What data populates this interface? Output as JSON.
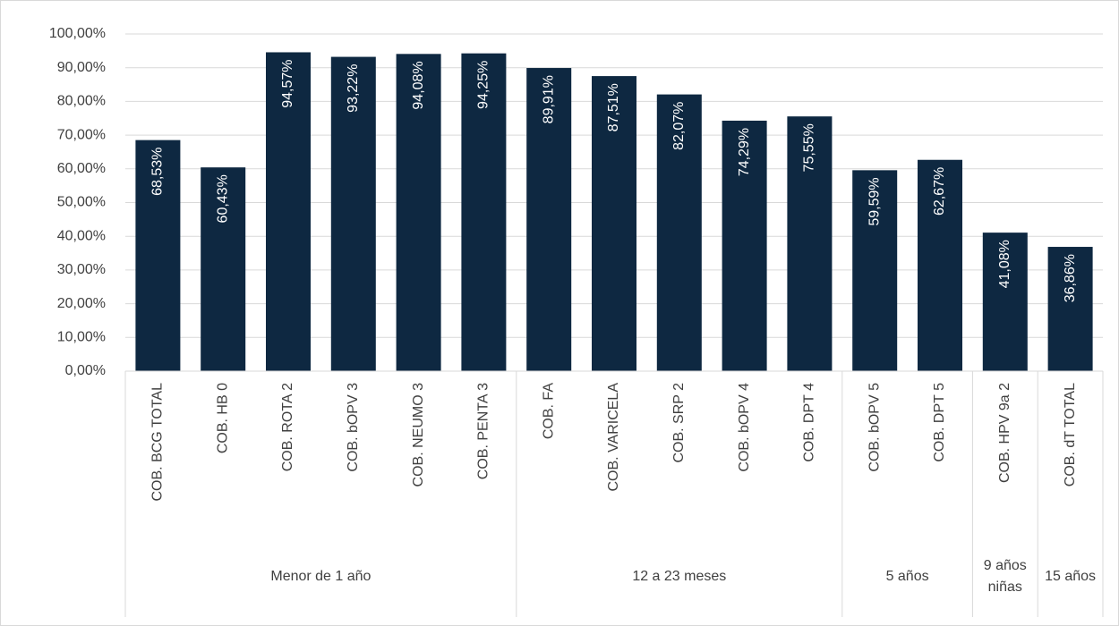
{
  "chart_data": {
    "type": "bar",
    "categories": [
      "COB. BCG TOTAL",
      "COB. HB 0",
      "COB. ROTA 2",
      "COB. bOPV 3",
      "COB. NEUMO 3",
      "COB. PENTA 3",
      "COB. FA",
      "COB. VARICELA",
      "COB. SRP 2",
      "COB. bOPV 4",
      "COB. DPT 4",
      "COB. bOPV 5",
      "COB. DPT 5",
      "COB. HPV 9a 2",
      "COB. dT TOTAL"
    ],
    "values": [
      68.53,
      60.43,
      94.57,
      93.22,
      94.08,
      94.25,
      89.91,
      87.51,
      82.07,
      74.29,
      75.55,
      59.59,
      62.67,
      41.08,
      36.86
    ],
    "value_labels": [
      "68,53%",
      "60,43%",
      "94,57%",
      "93,22%",
      "94,08%",
      "94,25%",
      "89,91%",
      "87,51%",
      "82,07%",
      "74,29%",
      "75,55%",
      "59,59%",
      "62,67%",
      "41,08%",
      "36,86%"
    ],
    "groups": [
      {
        "name": "Menor de 1 año",
        "count": 6
      },
      {
        "name": "12 a 23 meses",
        "count": 5
      },
      {
        "name": "5 años",
        "count": 2
      },
      {
        "name": "9 años niñas",
        "count": 1
      },
      {
        "name": "15 años",
        "count": 1
      }
    ],
    "color": "#0e2841",
    "ylim": [
      0,
      100
    ],
    "yticks": [
      {
        "value": 0,
        "label": "0,00%"
      },
      {
        "value": 10,
        "label": "10,00%"
      },
      {
        "value": 20,
        "label": "20,00%"
      },
      {
        "value": 30,
        "label": "30,00%"
      },
      {
        "value": 40,
        "label": "40,00%"
      },
      {
        "value": 50,
        "label": "50,00%"
      },
      {
        "value": 60,
        "label": "60,00%"
      },
      {
        "value": 70,
        "label": "70,00%"
      },
      {
        "value": 80,
        "label": "80,00%"
      },
      {
        "value": 90,
        "label": "90,00%"
      },
      {
        "value": 100,
        "label": "100,00%"
      }
    ],
    "grid": true
  }
}
